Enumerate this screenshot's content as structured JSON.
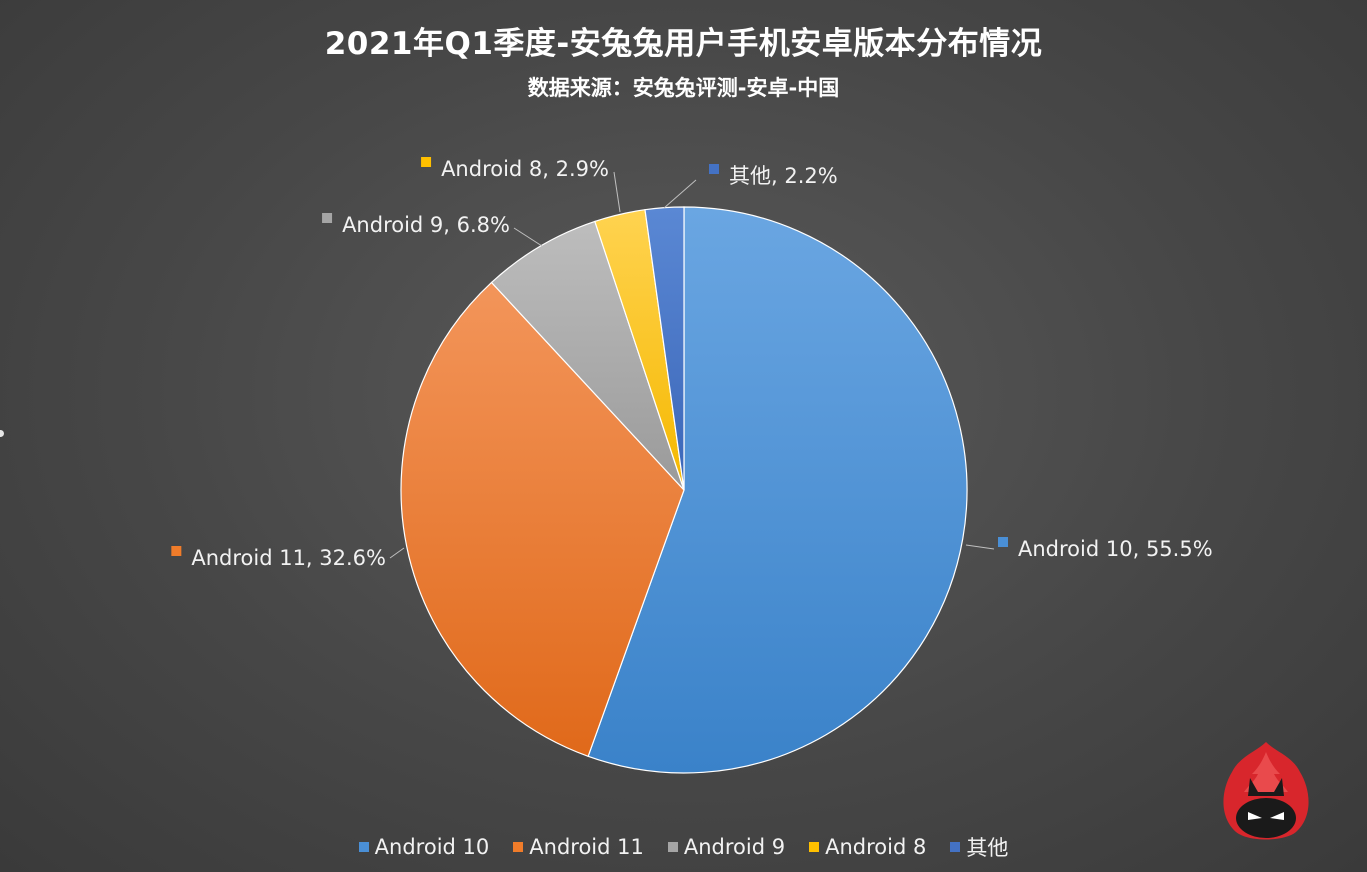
{
  "chart_data": {
    "type": "pie",
    "title": "2021年Q1季度-安兔兔用户手机安卓版本分布情况",
    "subtitle": "数据来源：安兔兔评测-安卓-中国",
    "start_angle_deg": 0,
    "direction": "clockwise",
    "legend_position": "bottom",
    "slices": [
      {
        "name": "Android 10",
        "value": 55.5,
        "label": "Android 10, 55.5%",
        "color": "#4a8fd6",
        "label_side": "right"
      },
      {
        "name": "Android 11",
        "value": 32.6,
        "label": "Android 11, 32.6%",
        "color": "#f07c2a",
        "label_side": "left"
      },
      {
        "name": "Android 9",
        "value": 6.8,
        "label": "Android 9, 6.8%",
        "color": "#a5a5a5",
        "label_side": "left"
      },
      {
        "name": "Android 8",
        "value": 2.9,
        "label": "Android 8, 2.9%",
        "color": "#ffc000",
        "label_side": "left"
      },
      {
        "name": "其他",
        "value": 2.2,
        "label": "其他, 2.2%",
        "color": "#4472c4",
        "label_side": "right"
      }
    ]
  },
  "logo": {
    "name": "antutu-logo-icon",
    "color": "#d8262c"
  }
}
